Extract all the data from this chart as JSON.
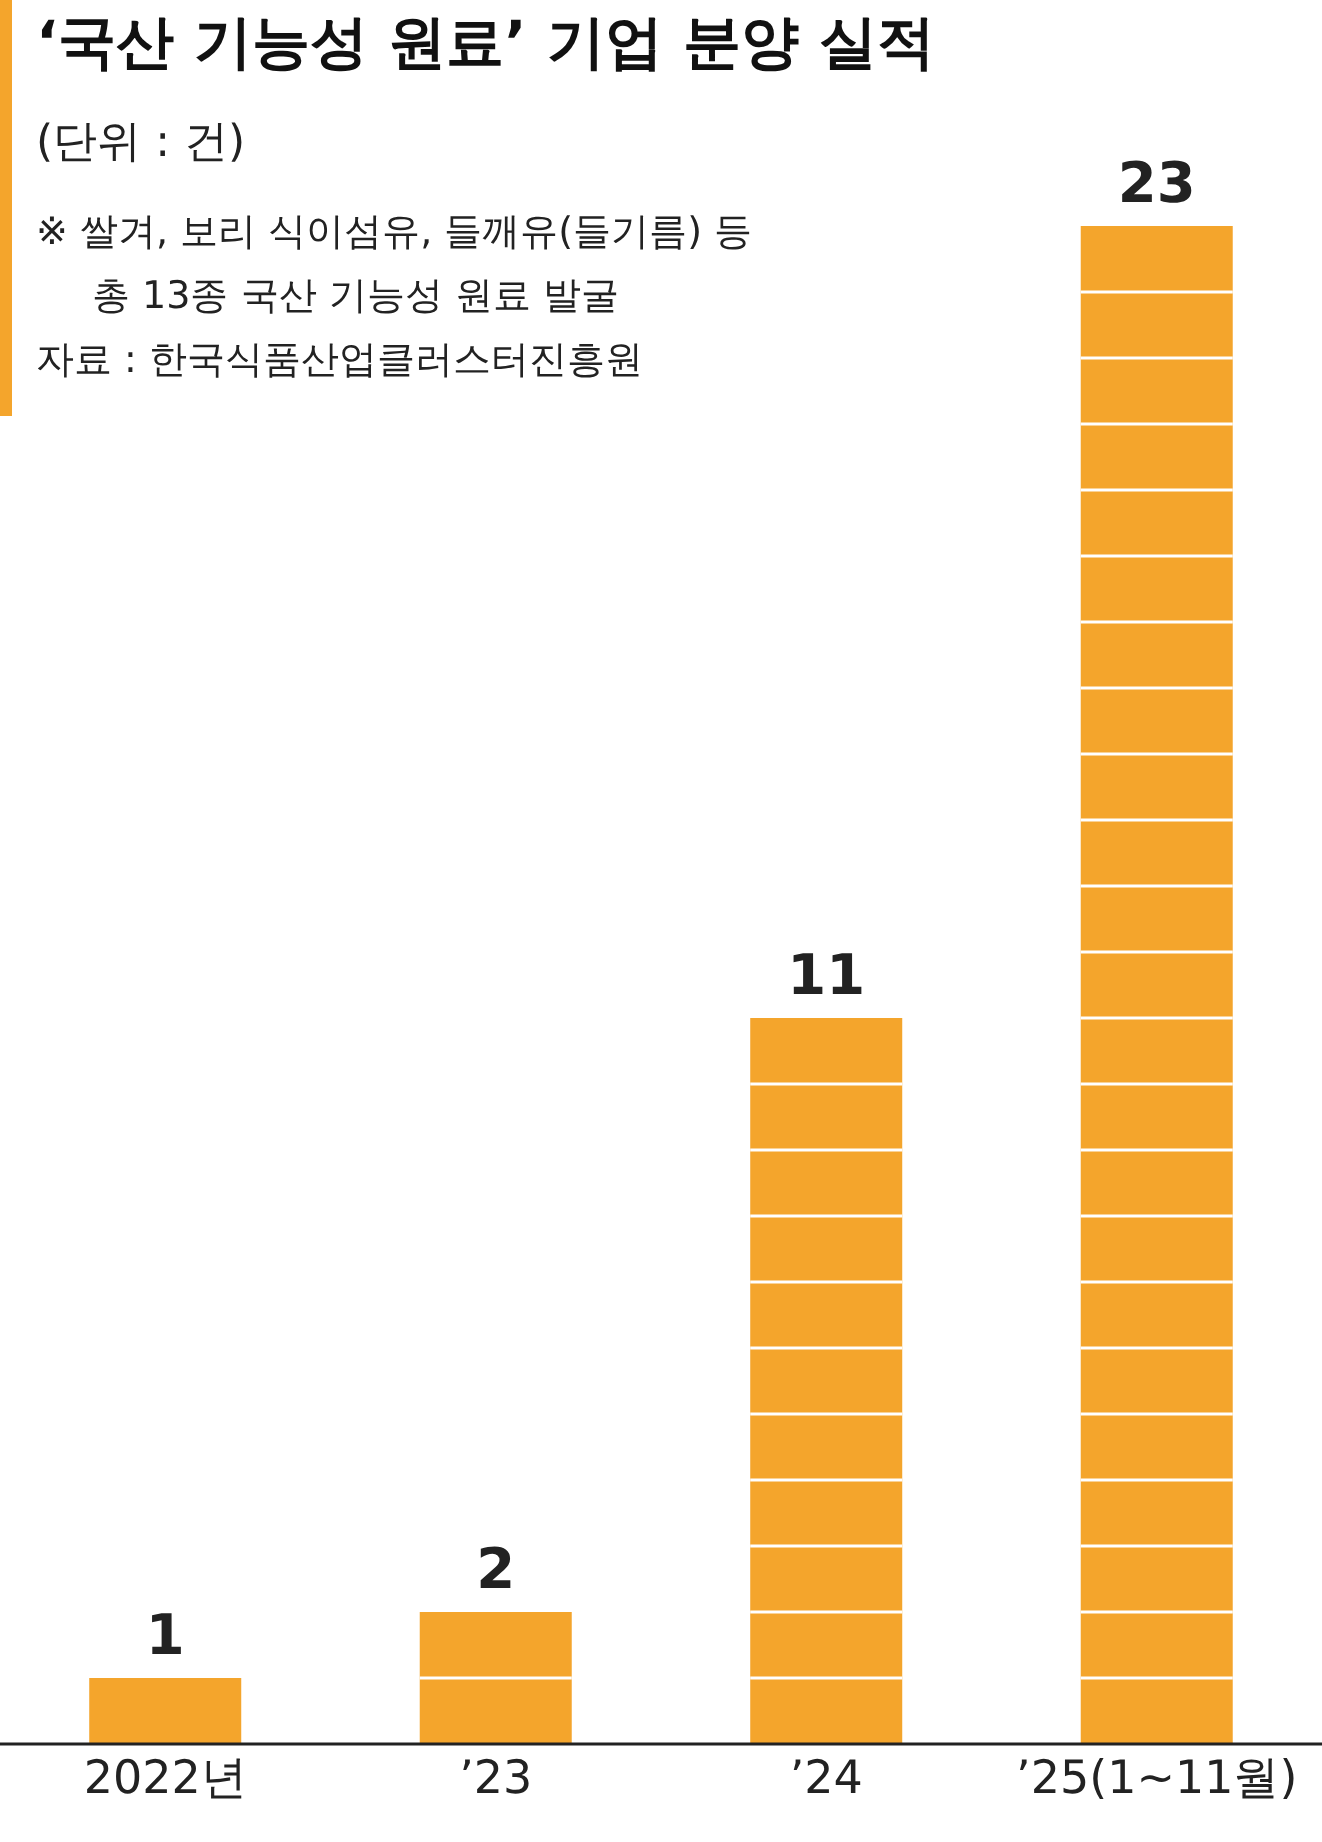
{
  "chart_data": {
    "type": "bar",
    "title": "‘국산 기능성 원료’ 기업 분양 실적",
    "subtitle": "(단위 : 건)",
    "annotations": [
      "※ 쌀겨, 보리 식이섬유, 들깨유(들기름) 등\n총 13종 국산 기능성 원료 발굴",
      "자료 : 한국식품산업클러스터진흥원"
    ],
    "categories": [
      "2022년",
      "’23",
      "’24",
      "’25(1~11월)"
    ],
    "values": [
      1,
      2,
      11,
      23
    ],
    "color": "#f4a52c",
    "data_labels": true
  }
}
